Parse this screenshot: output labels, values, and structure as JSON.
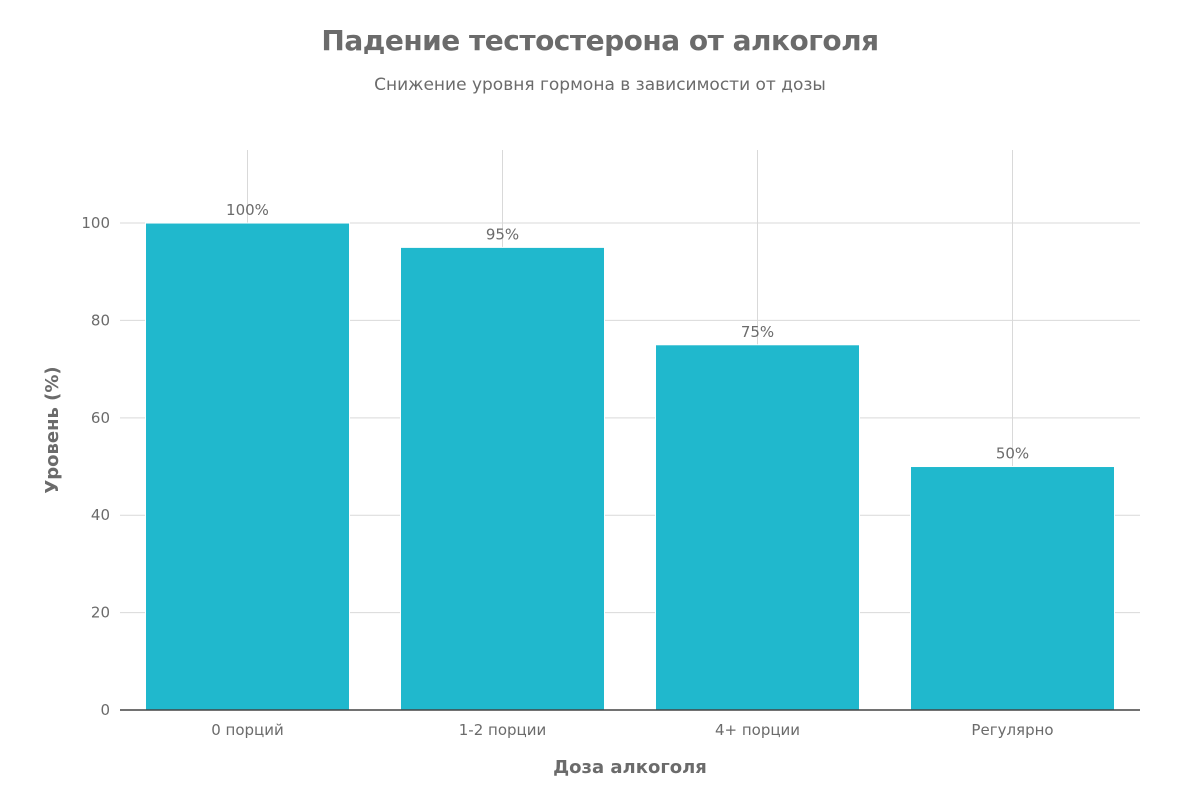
{
  "colors": {
    "bar": "#20b8cd",
    "text": "#6b6b6b",
    "grid": "#d9d9d9",
    "axis": "#444444"
  },
  "chart_data": {
    "type": "bar",
    "title": "Падение тестостерона от алкоголя",
    "subtitle": "Снижение уровня гормона в зависимости от дозы",
    "xlabel": "Доза алкоголя",
    "ylabel": "Уровень (%)",
    "categories": [
      "0 порций",
      "1-2 порции",
      "4+ порции",
      "Регулярно"
    ],
    "values": [
      100,
      95,
      75,
      50
    ],
    "data_labels": [
      "100%",
      "95%",
      "75%",
      "50%"
    ],
    "ylim": [
      0,
      115
    ],
    "yticks": [
      0,
      20,
      40,
      60,
      80,
      100
    ],
    "grid": true,
    "legend": "none"
  }
}
